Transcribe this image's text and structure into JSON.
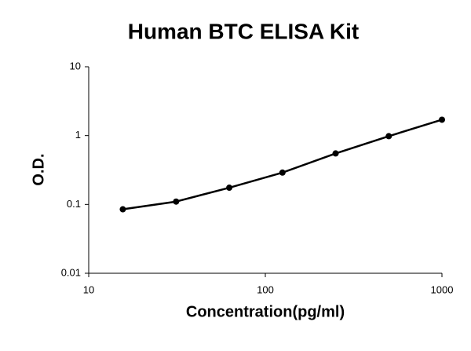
{
  "chart_data": {
    "type": "line",
    "title": "Human BTC ELISA Kit",
    "x_label": "Concentration(pg/ml)",
    "y_label": "O.D.",
    "x_scale": "log",
    "y_scale": "log",
    "x": [
      15.6,
      31.25,
      62.5,
      125,
      250,
      500,
      1000
    ],
    "series": [
      {
        "name": "O.D.",
        "color": "#000000",
        "values": [
          0.085,
          0.11,
          0.175,
          0.29,
          0.55,
          0.98,
          1.7
        ]
      }
    ],
    "xlim": [
      10,
      1000
    ],
    "xticks": [
      10,
      100,
      1000
    ],
    "ylim": [
      0.01,
      10
    ],
    "yticks": [
      0.01,
      0.1,
      1,
      10
    ],
    "grid": false,
    "markers": true
  }
}
